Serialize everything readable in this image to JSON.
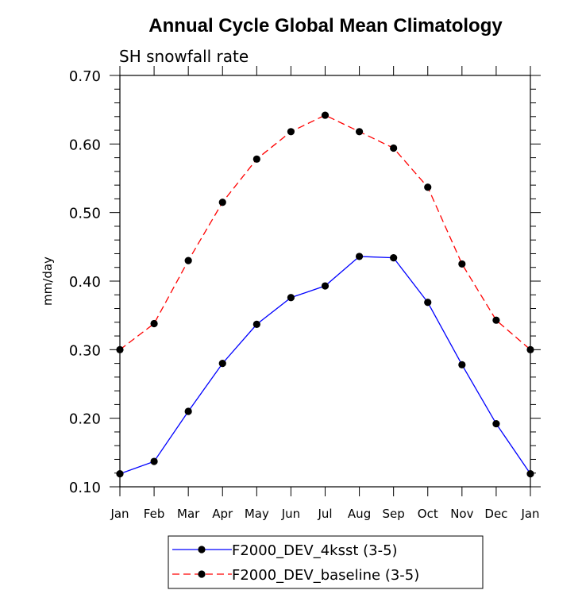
{
  "chart_data": {
    "type": "line",
    "title": "Annual Cycle Global Mean Climatology",
    "subtitle": "SH snowfall rate",
    "xlabel": "",
    "ylabel": "mm/day",
    "categories": [
      "Jan",
      "Feb",
      "Mar",
      "Apr",
      "May",
      "Jun",
      "Jul",
      "Aug",
      "Sep",
      "Oct",
      "Nov",
      "Dec",
      "Jan"
    ],
    "ylim": [
      0.1,
      0.7
    ],
    "yticks": [
      "0.10",
      "0.20",
      "0.30",
      "0.40",
      "0.50",
      "0.60",
      "0.70"
    ],
    "grid": false,
    "legend_position": "bottom",
    "series": [
      {
        "name": "F2000_DEV_4ksst (3-5)",
        "color": "#0000ff",
        "dash": "solid",
        "marker": "circle",
        "values": [
          0.119,
          0.137,
          0.21,
          0.28,
          0.337,
          0.376,
          0.393,
          0.436,
          0.434,
          0.369,
          0.278,
          0.192,
          0.119
        ]
      },
      {
        "name": "F2000_DEV_baseline (3-5)",
        "color": "#ff0000",
        "dash": "dashed",
        "marker": "circle",
        "values": [
          0.3,
          0.338,
          0.43,
          0.515,
          0.578,
          0.618,
          0.642,
          0.618,
          0.594,
          0.537,
          0.425,
          0.343,
          0.3
        ]
      }
    ]
  }
}
